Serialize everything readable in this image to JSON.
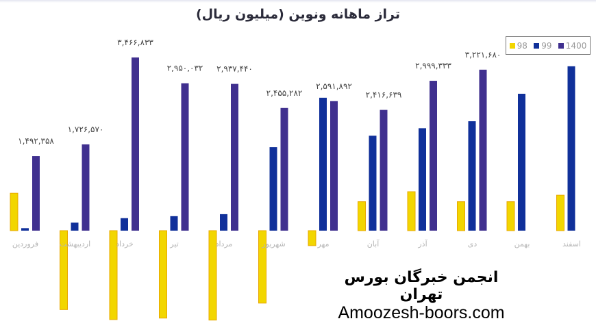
{
  "chart_data": {
    "type": "bar",
    "title": "تراز ماهانه ونوین (میلیون ریال)",
    "categories": [
      "فروردین",
      "اردیبهشت",
      "خرداد",
      "تیر",
      "مرداد",
      "شهریور",
      "مهر",
      "آبان",
      "آذر",
      "دی",
      "بهمن",
      "اسفند"
    ],
    "series": [
      {
        "name": "98",
        "color": "#f2d600",
        "values": [
          0.75,
          -1.58,
          -1.78,
          -1.75,
          -1.79,
          -1.45,
          -0.3,
          0.58,
          0.78,
          0.58,
          0.58,
          0.71
        ]
      },
      {
        "name": "99",
        "color": "#10309a",
        "values": [
          0.05,
          0.16,
          0.25,
          0.29,
          0.33,
          1.67,
          2.66,
          1.9,
          2.05,
          2.19,
          2.74,
          3.29
        ]
      },
      {
        "name": "1400",
        "color": "#40308f",
        "values": [
          1.492358,
          1.72657,
          3.466833,
          2.950032,
          2.93744,
          2.455282,
          2.591892,
          2.416639,
          2.999333,
          3.22168,
          null,
          null
        ]
      }
    ],
    "data_labels": [
      "۱,۴۹۲,۳۵۸",
      "۱,۷۲۶,۵۷۰",
      "۳,۴۶۶,۸۳۳",
      "۲,۹۵۰,۰۳۲",
      "۲,۹۳۷,۴۴۰",
      "۲,۴۵۵,۲۸۲",
      "۲,۵۹۱,۸۹۲",
      "۲,۴۱۶,۶۳۹",
      "۲,۹۹۹,۳۳۳",
      "۳,۲۲۱,۶۸۰",
      "",
      ""
    ],
    "ylabel": "",
    "xlabel": "",
    "grid": false,
    "legend_position": "top-right"
  },
  "watermark": {
    "line1": "انجمن خبرگان بورس تهران",
    "line2": "Amoozesh-boors.com"
  }
}
